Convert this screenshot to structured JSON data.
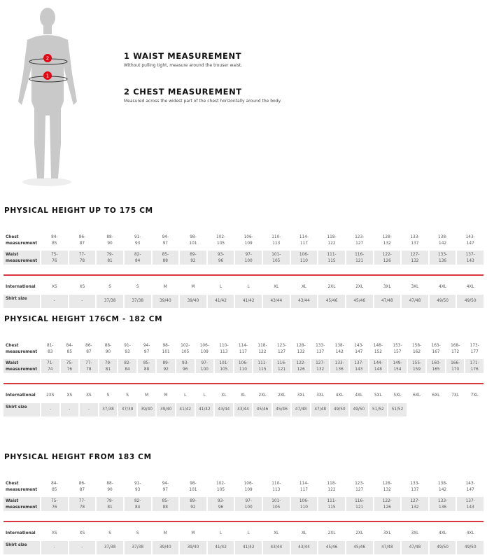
{
  "measurements": [
    {
      "title": "1 WAIST MEASUREMENT",
      "text": "Without pulling tight, measure around the trouser waist."
    },
    {
      "title": "2 CHEST MEASUREMENT",
      "text": "Measured across the widest part of the chest horizontally around the body."
    }
  ],
  "figure": {
    "markers": [
      "2",
      "1"
    ],
    "accent": "#e30613"
  },
  "row_labels": {
    "chest": "Chest measurement",
    "waist": "Waist measurement",
    "international": "International",
    "shirt": "Shirt size"
  },
  "tables": [
    {
      "title": "PHYSICAL HEIGHT UP TO 175 CM",
      "chest": [
        "84-85",
        "86-87",
        "88-90",
        "91-93",
        "94-97",
        "98-101",
        "102-105",
        "106-109",
        "110-113",
        "114-117",
        "118-122",
        "123-127",
        "128-132",
        "133-137",
        "138-142",
        "143-147"
      ],
      "waist": [
        "75-76",
        "77-78",
        "79-81",
        "82-84",
        "85-88",
        "89-92",
        "93-96",
        "97-100",
        "101-105",
        "106-110",
        "111-115",
        "116-121",
        "122-126",
        "127-132",
        "133-136",
        "137-143"
      ],
      "international": [
        "XS",
        "XS",
        "S",
        "S",
        "M",
        "M",
        "L",
        "L",
        "XL",
        "XL",
        "2XL",
        "2XL",
        "3XL",
        "3XL",
        "4XL",
        "4XL"
      ],
      "shirt": [
        "-",
        "-",
        "37/38",
        "37/38",
        "39/40",
        "39/40",
        "41/42",
        "41/42",
        "43/44",
        "43/44",
        "45/46",
        "45/46",
        "47/48",
        "47/48",
        "49/50",
        "49/50"
      ]
    },
    {
      "title": "PHYSICAL HEIGHT 176CM - 182 CM",
      "chest": [
        "81-83",
        "84-85",
        "86-87",
        "88-90",
        "91-93",
        "94-97",
        "98-101",
        "102-105",
        "106-109",
        "110-113",
        "114-117",
        "118-122",
        "123-127",
        "128-132",
        "133-137",
        "138-142",
        "143-147",
        "148-152",
        "153-157",
        "158-162",
        "163-167",
        "168-172",
        "173-177"
      ],
      "waist": [
        "71-74",
        "75-76",
        "77-78",
        "79-81",
        "82-84",
        "85-88",
        "89-92",
        "93-96",
        "97-100",
        "101-105",
        "106-110",
        "111-115",
        "116-121",
        "122-126",
        "127-132",
        "133-136",
        "137-143",
        "144-148",
        "149-154",
        "155-159",
        "160-165",
        "166-170",
        "171-176"
      ],
      "international": [
        "2XS",
        "XS",
        "XS",
        "S",
        "S",
        "M",
        "M",
        "L",
        "L",
        "XL",
        "XL",
        "2XL",
        "2XL",
        "3XL",
        "3XL",
        "4XL",
        "4XL",
        "5XL",
        "5XL",
        "6XL",
        "6XL",
        "7XL",
        "7XL"
      ],
      "shirt": [
        "-",
        "-",
        "-",
        "37/38",
        "37/38",
        "39/40",
        "39/40",
        "41/42",
        "41/42",
        "43/44",
        "43/44",
        "45/46",
        "45/46",
        "47/48",
        "47/48",
        "49/50",
        "49/50",
        "51/52",
        "51/52"
      ]
    },
    {
      "title": "PHYSICAL HEIGHT FROM 183 CM",
      "chest": [
        "84-85",
        "86-87",
        "88-90",
        "91-93",
        "94-97",
        "98-101",
        "102-105",
        "106-109",
        "110-113",
        "114-117",
        "118-122",
        "123-127",
        "128-132",
        "133-137",
        "138-142",
        "143-147"
      ],
      "waist": [
        "75-76",
        "77-78",
        "79-81",
        "82-84",
        "85-88",
        "89-92",
        "93-96",
        "97-100",
        "101-105",
        "106-110",
        "111-115",
        "116-121",
        "122-126",
        "127-132",
        "133-136",
        "137-143"
      ],
      "international": [
        "XS",
        "XS",
        "S",
        "S",
        "M",
        "M",
        "L",
        "L",
        "XL",
        "XL",
        "2XL",
        "2XL",
        "3XL",
        "3XL",
        "4XL",
        "4XL"
      ],
      "shirt": [
        "-",
        "-",
        "37/38",
        "37/38",
        "39/40",
        "39/40",
        "41/42",
        "41/42",
        "43/44",
        "43/44",
        "45/46",
        "45/46",
        "47/48",
        "47/48",
        "49/50",
        "49/50"
      ]
    }
  ]
}
